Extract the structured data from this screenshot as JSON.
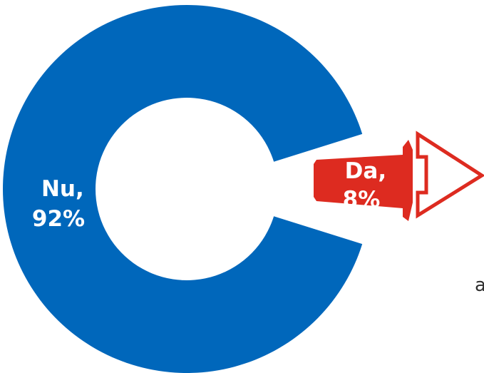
{
  "chart_data": {
    "type": "pie",
    "variant": "donut",
    "title": "",
    "slices": [
      {
        "label": "Nu",
        "percent": 92,
        "display": "92%",
        "color": "#0067bb"
      },
      {
        "label": "Da",
        "percent": 8,
        "display": "8%",
        "color": "#dd2b20"
      }
    ],
    "exploded_slice": "Da",
    "arrow_color": "#dd2b20",
    "legend": "none",
    "clipped_text": "a"
  }
}
